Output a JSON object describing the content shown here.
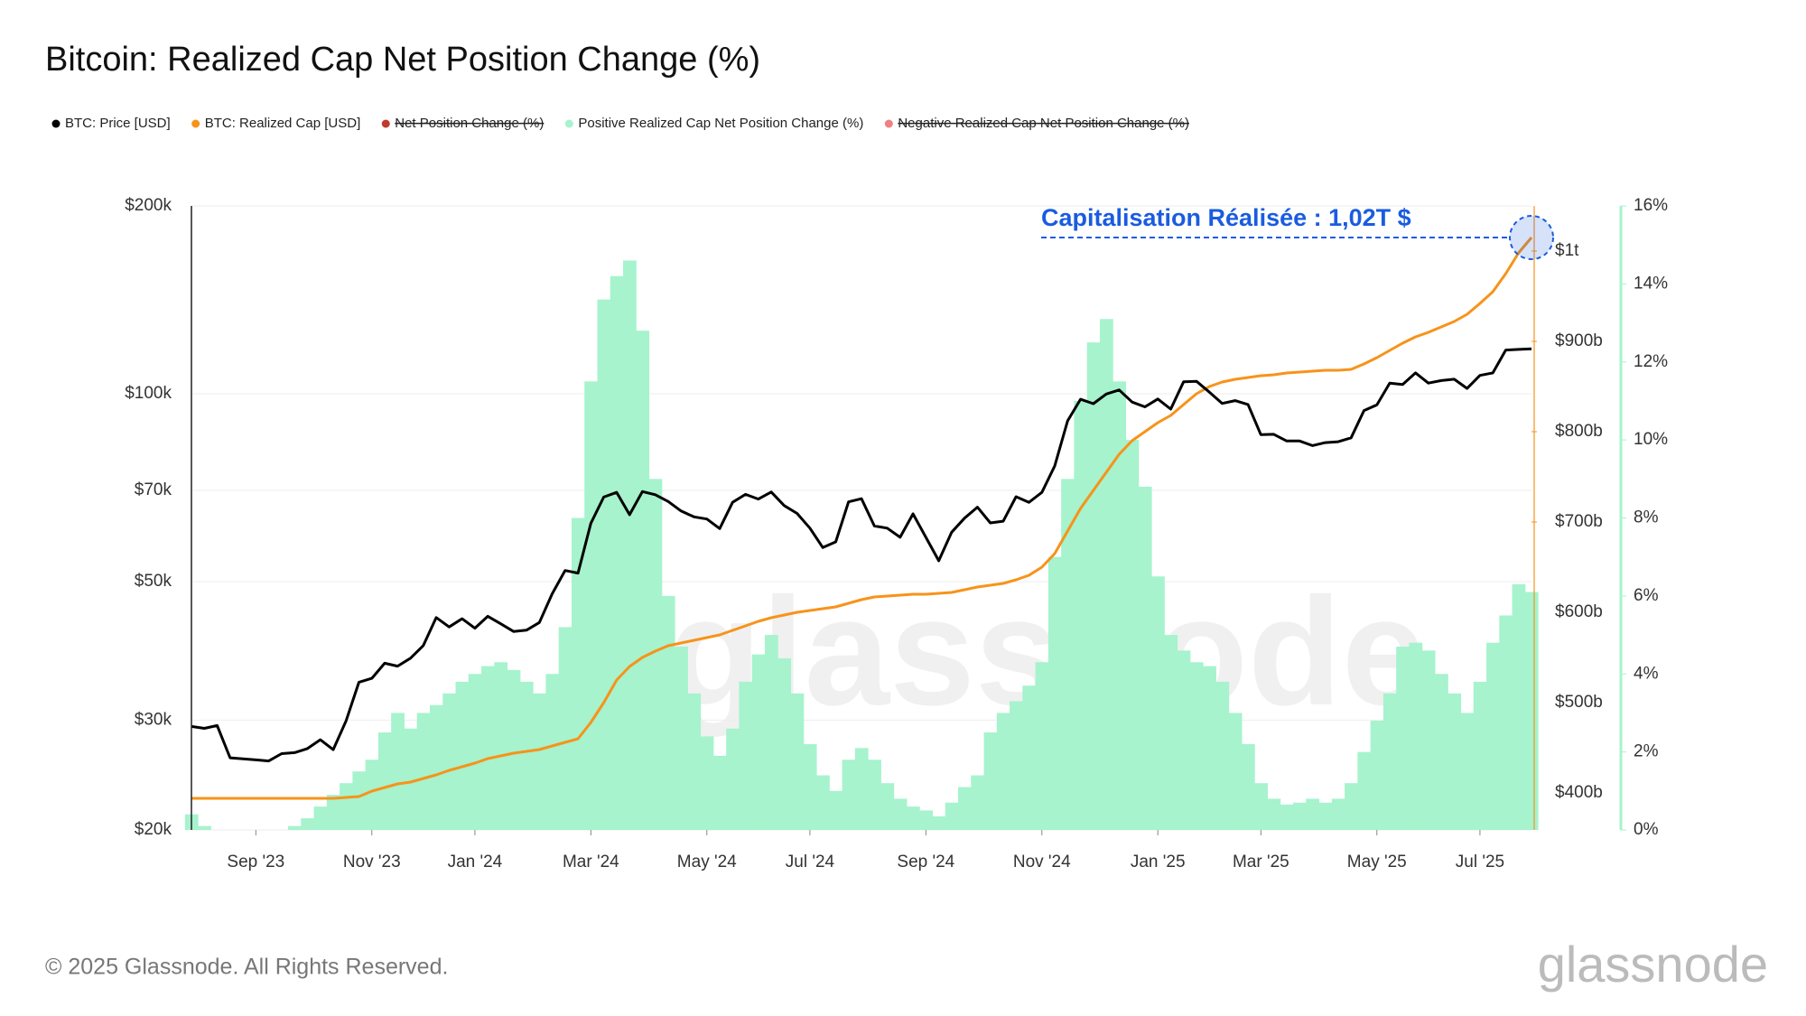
{
  "chart_data": {
    "type": "line",
    "title": "Bitcoin: Realized Cap Net Position Change (%)",
    "annotation": "Capitalisation Réalisée : 1,02T $",
    "watermark": "glassnode",
    "footer": "© 2025 Glassnode. All Rights Reserved.",
    "logo": "glassnode",
    "legend": [
      {
        "name": "BTC: Price [USD]",
        "color": "#000000",
        "hidden": false
      },
      {
        "name": "BTC: Realized Cap [USD]",
        "color": "#f7931a",
        "hidden": false
      },
      {
        "name": "Net Position Change (%)",
        "color": "#c0392b",
        "hidden": true
      },
      {
        "name": "Positive Realized Cap Net Position Change (%)",
        "color": "#a6f3cd",
        "hidden": false
      },
      {
        "name": "Negative Realized Cap Net Position Change (%)",
        "color": "#f08080",
        "hidden": true
      }
    ],
    "categories": [
      null,
      null,
      null,
      null,
      null,
      "Sep '23",
      null,
      null,
      null,
      null,
      null,
      null,
      null,
      null,
      "Nov '23",
      null,
      null,
      null,
      null,
      null,
      null,
      null,
      "Jan '24",
      null,
      null,
      null,
      null,
      null,
      null,
      null,
      null,
      "Mar '24",
      null,
      null,
      null,
      null,
      null,
      null,
      null,
      null,
      "May '24",
      null,
      null,
      null,
      null,
      null,
      null,
      null,
      "Jul '24",
      null,
      null,
      null,
      null,
      null,
      null,
      null,
      null,
      "Sep '24",
      null,
      null,
      null,
      null,
      null,
      null,
      null,
      null,
      "Nov '24",
      null,
      null,
      null,
      null,
      null,
      null,
      null,
      null,
      "Jan '25",
      null,
      null,
      null,
      null,
      null,
      null,
      null,
      "Mar '25",
      null,
      null,
      null,
      null,
      null,
      null,
      null,
      null,
      "May '25",
      null,
      null,
      null,
      null,
      null,
      null,
      null,
      "Jul '25",
      null,
      null,
      null,
      null
    ],
    "ylim": [
      20,
      200
    ],
    "yscale": "log",
    "yticks": [
      {
        "value": 20,
        "label": "$20k"
      },
      {
        "value": 30,
        "label": "$30k"
      },
      {
        "value": 50,
        "label": "$50k"
      },
      {
        "value": 70,
        "label": "$70k"
      },
      {
        "value": 100,
        "label": "$100k"
      },
      {
        "value": 200,
        "label": "$200k"
      }
    ],
    "y2lim": [
      359,
      1050
    ],
    "y2ticks": [
      {
        "value": 400,
        "label": "$400b"
      },
      {
        "value": 500,
        "label": "$500b"
      },
      {
        "value": 600,
        "label": "$600b"
      },
      {
        "value": 700,
        "label": "$700b"
      },
      {
        "value": 800,
        "label": "$800b"
      },
      {
        "value": 900,
        "label": "$900b"
      },
      {
        "value": 1000,
        "label": "$1t"
      }
    ],
    "y3lim": [
      0,
      16
    ],
    "y3ticks": [
      {
        "value": 0,
        "label": "0%"
      },
      {
        "value": 2,
        "label": "2%"
      },
      {
        "value": 4,
        "label": "4%"
      },
      {
        "value": 6,
        "label": "6%"
      },
      {
        "value": 8,
        "label": "8%"
      },
      {
        "value": 10,
        "label": "10%"
      },
      {
        "value": 12,
        "label": "12%"
      },
      {
        "value": 14,
        "label": "14%"
      },
      {
        "value": 16,
        "label": "16%"
      }
    ],
    "grid": true,
    "series": [
      {
        "name": "Positive Realized Cap Net Position Change (%)",
        "type": "bar",
        "axis": "y3",
        "color": "#a6f3cd",
        "values": [
          0.4,
          0.1,
          0,
          0,
          0,
          0,
          0,
          0,
          0.1,
          0.3,
          0.6,
          0.9,
          1.2,
          1.5,
          1.8,
          2.5,
          3.0,
          2.6,
          3.0,
          3.2,
          3.5,
          3.8,
          4.0,
          4.2,
          4.3,
          4.1,
          3.8,
          3.5,
          4.0,
          5.2,
          8.0,
          11.5,
          13.6,
          14.2,
          14.6,
          12.8,
          9.0,
          6.0,
          4.7,
          3.5,
          2.4,
          1.9,
          2.6,
          3.8,
          4.5,
          5.0,
          4.4,
          3.5,
          2.2,
          1.4,
          1.0,
          1.8,
          2.1,
          1.8,
          1.2,
          0.8,
          0.6,
          0.5,
          0.35,
          0.7,
          1.1,
          1.4,
          2.5,
          3.0,
          3.3,
          3.7,
          4.3,
          7.0,
          9.0,
          11.0,
          12.5,
          13.1,
          11.5,
          10.0,
          8.8,
          6.5,
          5.0,
          4.6,
          4.3,
          4.2,
          3.8,
          3.0,
          2.2,
          1.2,
          0.8,
          0.65,
          0.7,
          0.8,
          0.7,
          0.8,
          1.2,
          2.0,
          2.8,
          3.5,
          4.7,
          4.8,
          4.6,
          4.0,
          3.5,
          3.0,
          3.8,
          4.8,
          5.5,
          6.3,
          6.1
        ]
      },
      {
        "name": "BTC: Realized Cap [USD]",
        "type": "line",
        "axis": "y2",
        "color": "#f7931a",
        "values": [
          394,
          394,
          394,
          394,
          394,
          394,
          394,
          394,
          394,
          394,
          394,
          394,
          395,
          396,
          402,
          406,
          410,
          412,
          416,
          420,
          425,
          429,
          433,
          438,
          441,
          444,
          446,
          448,
          452,
          456,
          460,
          478,
          500,
          525,
          540,
          550,
          557,
          563,
          566,
          569,
          572,
          575,
          580,
          585,
          590,
          594,
          597,
          600,
          602,
          604,
          606,
          610,
          614,
          617,
          618,
          619,
          620,
          620,
          621,
          622,
          625,
          628,
          630,
          632,
          636,
          641,
          650,
          665,
          690,
          715,
          735,
          755,
          775,
          790,
          800,
          810,
          818,
          830,
          842,
          850,
          855,
          858,
          860,
          862,
          863,
          865,
          866,
          867,
          868,
          868,
          869,
          875,
          882,
          890,
          898,
          905,
          910,
          916,
          922,
          930,
          942,
          955,
          975,
          998,
          1015
        ]
      },
      {
        "name": "BTC: Price [USD]",
        "type": "line",
        "axis": "y",
        "color": "#000000",
        "values": [
          29.3,
          29.1,
          29.4,
          26.1,
          26.0,
          25.9,
          25.8,
          26.5,
          26.6,
          27.0,
          27.9,
          26.9,
          29.9,
          34.5,
          35.0,
          37.0,
          36.6,
          37.7,
          39.5,
          43.8,
          42.3,
          43.6,
          42.1,
          44.0,
          42.8,
          41.6,
          41.8,
          43.0,
          47.8,
          52.1,
          51.6,
          62.0,
          68.3,
          69.5,
          64.0,
          69.7,
          68.9,
          67.2,
          64.9,
          63.5,
          63.0,
          60.8,
          67.0,
          69.0,
          67.8,
          69.6,
          66.2,
          64.3,
          60.9,
          56.7,
          57.9,
          67.1,
          67.9,
          61.4,
          60.9,
          58.9,
          64.2,
          58.9,
          54.0,
          60.0,
          63.2,
          65.8,
          62.1,
          62.5,
          68.4,
          67.0,
          69.5,
          76.6,
          90.5,
          98.0,
          96.4,
          99.9,
          101.4,
          97.0,
          95.3,
          98.1,
          94.5,
          104.5,
          104.7,
          100.6,
          96.5,
          97.5,
          96.1,
          86.0,
          86.1,
          84.0,
          84.0,
          82.6,
          83.5,
          83.8,
          85.0,
          94.0,
          96.0,
          104.0,
          103.5,
          108.0,
          104.0,
          105.0,
          105.5,
          102.0,
          107.0,
          108.0,
          117.5,
          117.8,
          118.0
        ]
      }
    ]
  }
}
